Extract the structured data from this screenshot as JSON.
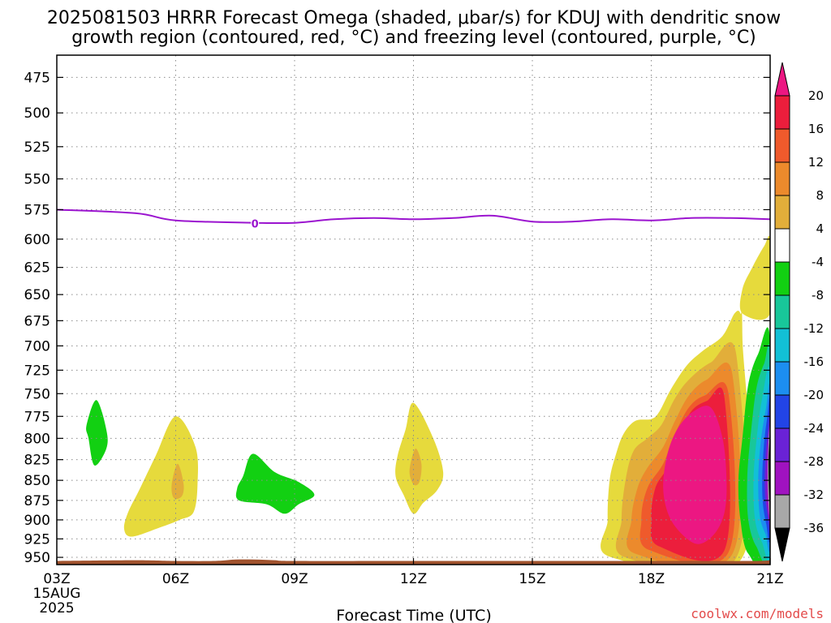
{
  "title_lines": [
    "2025081503 HRRR Forecast Omega (shaded, μbar/s) for KDUJ with dendritic snow",
    "growth region (contoured, red, °C) and freezing level (contoured, purple, °C)"
  ],
  "credit": "coolwx.com/models",
  "colors": {
    "freezing_level": "#9b14cf",
    "ground": "#a0522d",
    "pos4": "#e6da3c",
    "pos8": "#e2ae3a",
    "pos12": "#ec8a2c",
    "pos16": "#ef5a2c",
    "pos20": "#ec1e3c",
    "pos_max": "#ec1782",
    "neg4": "#12d012",
    "neg8": "#18c79a",
    "neg12": "#12c0d6",
    "neg16": "#1c8ef0",
    "neg20": "#2244e6",
    "neg24": "#6a22d6",
    "neg28": "#a012c0",
    "neg32": "#a8a8a8",
    "neg_min": "#000000"
  },
  "chart_data": {
    "type": "heatmap",
    "title": "2025081503 HRRR Forecast Omega (shaded, μbar/s) for KDUJ with dendritic snow growth region (contoured, red, °C) and freezing level (contoured, purple, °C)",
    "xlabel": "Forecast Time (UTC)",
    "ylabel": "",
    "x_range_hours": [
      3,
      21
    ],
    "x_ticks": [
      {
        "hour": 3,
        "label": "03Z",
        "sub": [
          "15AUG",
          "2025"
        ]
      },
      {
        "hour": 6,
        "label": "06Z"
      },
      {
        "hour": 9,
        "label": "09Z"
      },
      {
        "hour": 12,
        "label": "12Z"
      },
      {
        "hour": 15,
        "label": "15Z"
      },
      {
        "hour": 18,
        "label": "18Z"
      },
      {
        "hour": 21,
        "label": "21Z"
      }
    ],
    "y_scale": "log-pressure",
    "y_range_mb": [
      460,
      960
    ],
    "y_ticks": [
      475,
      500,
      525,
      550,
      575,
      600,
      625,
      650,
      675,
      700,
      725,
      750,
      775,
      800,
      825,
      850,
      875,
      900,
      925,
      950
    ],
    "colorbar_ticks": [
      "20",
      "16",
      "12",
      "8",
      "4",
      "-4",
      "-8",
      "-12",
      "-16",
      "-20",
      "-24",
      "-28",
      "-32",
      "-36"
    ],
    "freezing_level": {
      "label": "0",
      "points": [
        [
          3,
          575
        ],
        [
          5,
          578
        ],
        [
          6,
          584
        ],
        [
          8,
          586
        ],
        [
          9,
          586
        ],
        [
          10,
          583
        ],
        [
          11,
          582
        ],
        [
          12,
          583
        ],
        [
          13,
          582
        ],
        [
          14,
          580
        ],
        [
          15,
          585
        ],
        [
          16,
          585
        ],
        [
          17,
          583
        ],
        [
          18,
          584
        ],
        [
          19,
          582
        ],
        [
          20,
          582
        ],
        [
          21,
          583
        ]
      ]
    },
    "omega_regions": [
      {
        "level": "neg4",
        "points": [
          [
            4.0,
            757
          ],
          [
            4.25,
            790
          ],
          [
            4.25,
            812
          ],
          [
            3.95,
            832
          ],
          [
            3.8,
            800
          ],
          [
            3.75,
            785
          ]
        ]
      },
      {
        "level": "pos4",
        "points": [
          [
            6.0,
            775
          ],
          [
            6.5,
            810
          ],
          [
            6.55,
            855
          ],
          [
            6.45,
            890
          ],
          [
            6.1,
            900
          ],
          [
            5.6,
            910
          ],
          [
            4.9,
            922
          ],
          [
            4.7,
            912
          ],
          [
            4.8,
            890
          ],
          [
            5.1,
            860
          ],
          [
            5.5,
            820
          ]
        ]
      },
      {
        "level": "pos8",
        "points": [
          [
            6.05,
            830
          ],
          [
            6.2,
            855
          ],
          [
            6.15,
            870
          ],
          [
            5.95,
            872
          ],
          [
            5.9,
            855
          ]
        ]
      },
      {
        "level": "neg4",
        "points": [
          [
            7.95,
            818
          ],
          [
            8.5,
            840
          ],
          [
            9.1,
            852
          ],
          [
            9.5,
            868
          ],
          [
            9.1,
            880
          ],
          [
            8.75,
            892
          ],
          [
            8.3,
            880
          ],
          [
            7.6,
            875
          ],
          [
            7.55,
            860
          ],
          [
            7.7,
            845
          ]
        ]
      },
      {
        "level": "pos4",
        "points": [
          [
            12.0,
            760
          ],
          [
            12.5,
            800
          ],
          [
            12.75,
            840
          ],
          [
            12.6,
            862
          ],
          [
            12.25,
            878
          ],
          [
            12.0,
            892
          ],
          [
            11.75,
            868
          ],
          [
            11.55,
            845
          ],
          [
            11.6,
            820
          ],
          [
            11.8,
            790
          ]
        ]
      },
      {
        "level": "pos8",
        "points": [
          [
            12.05,
            812
          ],
          [
            12.2,
            830
          ],
          [
            12.15,
            852
          ],
          [
            12.0,
            855
          ],
          [
            11.9,
            838
          ]
        ]
      },
      {
        "level": "pos4",
        "points": [
          [
            20.1,
            668
          ],
          [
            20.25,
            668
          ],
          [
            20.3,
            690
          ],
          [
            20.3,
            950
          ],
          [
            17.0,
            950
          ],
          [
            16.9,
            900
          ],
          [
            16.95,
            850
          ],
          [
            17.1,
            820
          ],
          [
            17.3,
            795
          ],
          [
            17.6,
            780
          ],
          [
            18.0,
            778
          ],
          [
            18.2,
            770
          ],
          [
            18.5,
            745
          ],
          [
            18.9,
            720
          ],
          [
            19.3,
            705
          ],
          [
            19.8,
            690
          ]
        ]
      },
      {
        "level": "pos8",
        "points": [
          [
            20.15,
            710
          ],
          [
            20.15,
            950
          ],
          [
            17.35,
            950
          ],
          [
            17.25,
            900
          ],
          [
            17.35,
            850
          ],
          [
            17.55,
            815
          ],
          [
            17.9,
            800
          ],
          [
            18.25,
            785
          ],
          [
            18.6,
            755
          ],
          [
            18.95,
            735
          ],
          [
            19.5,
            717
          ]
        ]
      },
      {
        "level": "pos12",
        "points": [
          [
            20.05,
            730
          ],
          [
            20.05,
            945
          ],
          [
            17.6,
            945
          ],
          [
            17.5,
            900
          ],
          [
            17.65,
            860
          ],
          [
            17.9,
            835
          ],
          [
            18.3,
            810
          ],
          [
            18.6,
            780
          ],
          [
            18.95,
            752
          ],
          [
            19.4,
            735
          ]
        ]
      },
      {
        "level": "pos16",
        "points": [
          [
            19.95,
            750
          ],
          [
            19.95,
            943
          ],
          [
            17.95,
            940
          ],
          [
            17.75,
            900
          ],
          [
            17.9,
            860
          ],
          [
            18.3,
            830
          ],
          [
            18.6,
            795
          ],
          [
            18.95,
            765
          ],
          [
            19.35,
            752
          ]
        ]
      },
      {
        "level": "pos20",
        "points": [
          [
            19.85,
            755
          ],
          [
            19.85,
            940
          ],
          [
            18.2,
            935
          ],
          [
            18.0,
            900
          ],
          [
            18.1,
            860
          ],
          [
            18.4,
            835
          ],
          [
            18.7,
            800
          ],
          [
            19.0,
            770
          ],
          [
            19.4,
            758
          ]
        ]
      },
      {
        "level": "pos_max",
        "points": [
          [
            19.5,
            765
          ],
          [
            19.8,
            800
          ],
          [
            19.9,
            850
          ],
          [
            19.85,
            890
          ],
          [
            19.6,
            918
          ],
          [
            19.2,
            932
          ],
          [
            18.8,
            920
          ],
          [
            18.45,
            895
          ],
          [
            18.3,
            860
          ],
          [
            18.4,
            820
          ],
          [
            18.65,
            790
          ],
          [
            19.05,
            770
          ]
        ]
      },
      {
        "level": "pos4",
        "points": [
          [
            21.0,
            601
          ],
          [
            21.0,
            668
          ],
          [
            20.3,
            668
          ],
          [
            20.3,
            645
          ],
          [
            20.55,
            625
          ],
          [
            20.85,
            606
          ]
        ]
      },
      {
        "level": "neg4",
        "points": [
          [
            21.0,
            695
          ],
          [
            21.0,
            950
          ],
          [
            20.45,
            945
          ],
          [
            20.25,
            900
          ],
          [
            20.2,
            850
          ],
          [
            20.3,
            800
          ],
          [
            20.45,
            740
          ],
          [
            20.7,
            708
          ]
        ]
      },
      {
        "level": "neg8",
        "points": [
          [
            21.0,
            712
          ],
          [
            21.0,
            945
          ],
          [
            20.65,
            935
          ],
          [
            20.45,
            900
          ],
          [
            20.42,
            850
          ],
          [
            20.5,
            800
          ],
          [
            20.65,
            745
          ],
          [
            20.85,
            718
          ]
        ]
      },
      {
        "level": "neg12",
        "points": [
          [
            21.0,
            730
          ],
          [
            21.0,
            940
          ],
          [
            20.8,
            930
          ],
          [
            20.62,
            900
          ],
          [
            20.58,
            850
          ],
          [
            20.66,
            800
          ],
          [
            20.8,
            755
          ]
        ]
      },
      {
        "level": "neg16",
        "points": [
          [
            21.0,
            748
          ],
          [
            21.0,
            930
          ],
          [
            20.88,
            918
          ],
          [
            20.74,
            895
          ],
          [
            20.7,
            850
          ],
          [
            20.76,
            805
          ],
          [
            20.9,
            765
          ]
        ]
      },
      {
        "level": "neg20",
        "points": [
          [
            21.0,
            762
          ],
          [
            21.0,
            920
          ],
          [
            20.9,
            905
          ],
          [
            20.82,
            880
          ],
          [
            20.8,
            850
          ],
          [
            20.84,
            810
          ],
          [
            20.93,
            775
          ]
        ]
      },
      {
        "level": "neg24",
        "points": [
          [
            21.0,
            772
          ],
          [
            21.0,
            910
          ],
          [
            20.95,
            898
          ],
          [
            20.88,
            875
          ],
          [
            20.86,
            850
          ],
          [
            20.89,
            815
          ],
          [
            20.96,
            785
          ]
        ]
      },
      {
        "level": "neg28",
        "points": [
          [
            21.0,
            782
          ],
          [
            21.0,
            900
          ],
          [
            20.93,
            880
          ],
          [
            20.91,
            850
          ],
          [
            20.93,
            815
          ],
          [
            20.98,
            792
          ]
        ]
      },
      {
        "level": "neg32",
        "points": [
          [
            21.0,
            790
          ],
          [
            21.0,
            895
          ],
          [
            20.95,
            870
          ],
          [
            20.94,
            840
          ],
          [
            20.96,
            805
          ]
        ]
      },
      {
        "level": "neg_min",
        "points": [
          [
            21.0,
            795
          ],
          [
            21.0,
            890
          ],
          [
            20.97,
            860
          ],
          [
            20.96,
            830
          ],
          [
            20.98,
            805
          ]
        ]
      }
    ],
    "ground": {
      "points": [
        [
          3,
          955
        ],
        [
          5,
          954
        ],
        [
          6,
          955
        ],
        [
          7,
          955
        ],
        [
          7.5,
          953
        ],
        [
          8,
          953
        ],
        [
          8.5,
          954
        ],
        [
          9,
          955
        ],
        [
          12,
          955
        ],
        [
          15,
          955
        ],
        [
          18,
          955
        ],
        [
          20.5,
          955
        ],
        [
          21,
          954
        ]
      ]
    }
  }
}
